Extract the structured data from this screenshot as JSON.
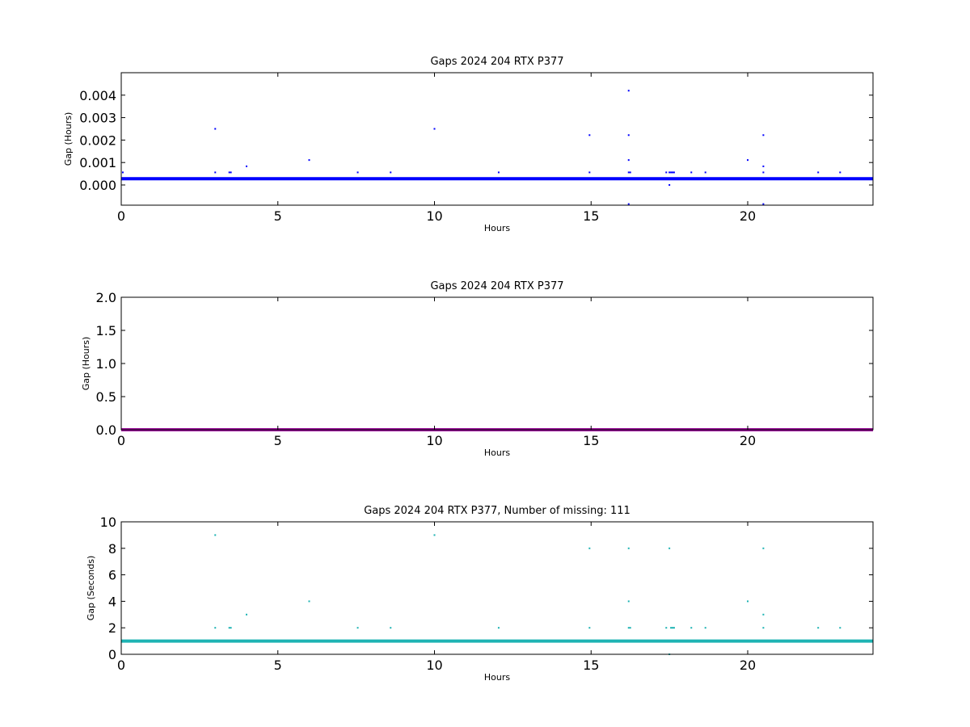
{
  "chart_data": [
    {
      "type": "scatter",
      "title": "Gaps 2024 204 RTX  P377",
      "xlabel": "Hours",
      "ylabel": "Gap (Hours)",
      "xlim": [
        0,
        24
      ],
      "ylim": [
        -0.0009,
        0.005
      ],
      "xticks": [
        0,
        5,
        10,
        15,
        20
      ],
      "yticks": [
        0.0,
        0.001,
        0.002,
        0.003,
        0.004
      ],
      "ytick_labels": [
        "0.000",
        "0.001",
        "0.002",
        "0.003",
        "0.004"
      ],
      "grid": false,
      "baseline": {
        "y": 0.000278,
        "color": "#0000ff"
      },
      "series": [
        {
          "color": "#0000ff",
          "x": [
            0.05,
            3.0,
            3.0,
            3.45,
            3.5,
            4.0,
            6.0,
            7.55,
            8.6,
            10.0,
            12.05,
            14.95,
            14.95,
            16.2,
            16.2,
            16.2,
            16.2,
            16.25,
            16.2,
            17.4,
            17.5,
            17.55,
            17.6,
            17.65,
            17.5,
            18.2,
            18.65,
            20.0,
            20.5,
            20.5,
            20.5,
            20.5,
            22.25,
            22.95
          ],
          "y": [
            0.00056,
            0.0025,
            0.00056,
            0.00056,
            0.00056,
            0.00083,
            0.00111,
            0.00056,
            0.00056,
            0.0025,
            0.00056,
            0.00222,
            0.00056,
            0.0042,
            0.00222,
            0.00111,
            0.00056,
            0.00056,
            -0.00085,
            0.00056,
            0.00056,
            0.00056,
            0.00056,
            0.00056,
            0.0,
            0.00056,
            0.00056,
            0.00111,
            0.00222,
            0.00083,
            0.00056,
            -0.00085,
            0.00056,
            0.00056
          ]
        }
      ]
    },
    {
      "type": "scatter",
      "title": "Gaps 2024 204 RTX  P377",
      "xlabel": "Hours",
      "ylabel": "Gap (Hours)",
      "xlim": [
        0,
        24
      ],
      "ylim": [
        0,
        2.0
      ],
      "xticks": [
        0,
        5,
        10,
        15,
        20
      ],
      "yticks": [
        0.0,
        0.5,
        1.0,
        1.5,
        2.0
      ],
      "ytick_labels": [
        "0.0",
        "0.5",
        "1.0",
        "1.5",
        "2.0"
      ],
      "grid": false,
      "baseline": {
        "y": 0.0,
        "color": "#9b109b"
      },
      "series": []
    },
    {
      "type": "scatter",
      "title": "Gaps 2024 204 RTX  P377, Number of missing: 111",
      "xlabel": "Hours",
      "ylabel": "Gap (Seconds)",
      "xlim": [
        0,
        24
      ],
      "ylim": [
        0,
        10
      ],
      "xticks": [
        0,
        5,
        10,
        15,
        20
      ],
      "yticks": [
        0,
        2,
        4,
        6,
        8,
        10
      ],
      "ytick_labels": [
        "0",
        "2",
        "4",
        "6",
        "8",
        "10"
      ],
      "grid": false,
      "baseline": {
        "y": 1.0,
        "color": "#1db3b3"
      },
      "series": [
        {
          "color": "#1db3b3",
          "x": [
            3.0,
            3.0,
            3.45,
            3.5,
            4.0,
            6.0,
            7.55,
            8.6,
            10.0,
            12.05,
            14.95,
            14.95,
            16.2,
            16.2,
            16.2,
            16.25,
            17.4,
            17.5,
            17.55,
            17.6,
            17.65,
            17.5,
            18.2,
            18.65,
            20.0,
            20.5,
            20.5,
            20.5,
            22.25,
            22.95
          ],
          "y": [
            9,
            2,
            2,
            2,
            3,
            4,
            2,
            2,
            9,
            2,
            8,
            2,
            8,
            4,
            2,
            2,
            2,
            8,
            2,
            2,
            2,
            0,
            2,
            2,
            4,
            8,
            3,
            2,
            2,
            2
          ]
        }
      ]
    }
  ]
}
